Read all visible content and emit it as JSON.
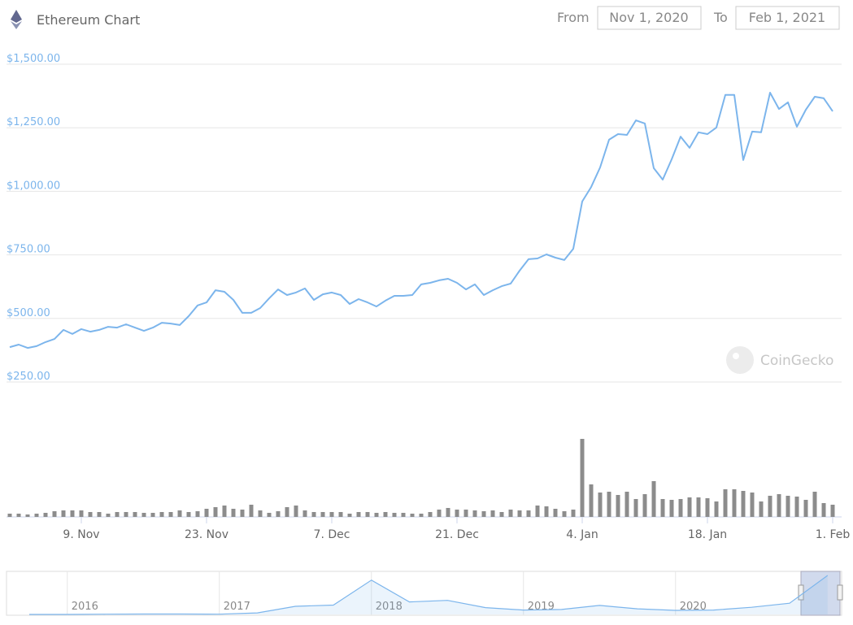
{
  "header": {
    "from_label": "From",
    "from_date": "Nov 1, 2020",
    "to_label": "To",
    "to_date": "Feb 1, 2021"
  },
  "watermark": "CoinGecko",
  "chart_data": [
    {
      "type": "line",
      "title": "Ethereum Chart",
      "color": "#7cb5ec",
      "grid": true,
      "categories": [
        null,
        null,
        null,
        null,
        null,
        null,
        null,
        null,
        "9. Nov",
        null,
        null,
        null,
        null,
        null,
        null,
        null,
        null,
        null,
        null,
        null,
        null,
        null,
        "23. Nov",
        null,
        null,
        null,
        null,
        null,
        null,
        null,
        null,
        null,
        null,
        null,
        null,
        null,
        "7. Dec",
        null,
        null,
        null,
        null,
        null,
        null,
        null,
        null,
        null,
        null,
        null,
        null,
        null,
        "21. Dec",
        null,
        null,
        null,
        null,
        null,
        null,
        null,
        null,
        null,
        null,
        null,
        null,
        null,
        "4. Jan",
        null,
        null,
        null,
        null,
        null,
        null,
        null,
        null,
        null,
        null,
        null,
        null,
        null,
        "18. Jan",
        null,
        null,
        null,
        null,
        null,
        null,
        null,
        null,
        null,
        null,
        null,
        null,
        null,
        "1. Feb"
      ],
      "values": [
        387,
        397,
        384,
        391,
        407,
        419,
        455,
        439,
        458,
        448,
        455,
        467,
        464,
        477,
        464,
        451,
        464,
        483,
        480,
        474,
        509,
        551,
        563,
        611,
        605,
        573,
        522,
        522,
        541,
        579,
        614,
        592,
        602,
        618,
        573,
        595,
        602,
        592,
        557,
        576,
        563,
        547,
        570,
        589,
        589,
        592,
        634,
        640,
        650,
        656,
        640,
        614,
        634,
        592,
        611,
        627,
        637,
        688,
        733,
        736,
        752,
        739,
        730,
        774,
        960,
        1017,
        1094,
        1203,
        1225,
        1222,
        1279,
        1267,
        1091,
        1046,
        1126,
        1215,
        1171,
        1232,
        1225,
        1251,
        1379,
        1379,
        1123,
        1235,
        1232,
        1388,
        1324,
        1350,
        1254,
        1321,
        1372,
        1366,
        1315
      ],
      "ylim": [
        250,
        1500
      ],
      "yticks": [
        {
          "value": 250,
          "label": "$250.00"
        },
        {
          "value": 500,
          "label": "$500.00"
        },
        {
          "value": 750,
          "label": "$750.00"
        },
        {
          "value": 1000,
          "label": "$1,000.00"
        },
        {
          "value": 1250,
          "label": "$1,250.00"
        },
        {
          "value": 1500,
          "label": "$1,500.00"
        }
      ]
    },
    {
      "type": "bar",
      "color": "#8c8c8c",
      "values": [
        4,
        4,
        3,
        4,
        5,
        7,
        8,
        8,
        8,
        6,
        6,
        4,
        6,
        6,
        6,
        5,
        5,
        6,
        6,
        8,
        6,
        7,
        10,
        12,
        14,
        10,
        9,
        15,
        8,
        5,
        7,
        12,
        14,
        8,
        6,
        6,
        6,
        6,
        4,
        6,
        6,
        5,
        6,
        5,
        5,
        4,
        4,
        6,
        9,
        11,
        9,
        9,
        8,
        7,
        8,
        6,
        9,
        8,
        8,
        14,
        13,
        10,
        7,
        9,
        96,
        40,
        30,
        31,
        27,
        31,
        22,
        28,
        44,
        22,
        21,
        22,
        24,
        24,
        23,
        19,
        34,
        34,
        32,
        30,
        19,
        26,
        28,
        26,
        25,
        21,
        31,
        17,
        15
      ]
    },
    {
      "type": "area",
      "color": "#7cb5ec",
      "categories": [
        null,
        "2016",
        null,
        null,
        null,
        "2017",
        null,
        null,
        null,
        "2018",
        null,
        null,
        null,
        "2019",
        null,
        null,
        null,
        "2020",
        null,
        null,
        null,
        null
      ],
      "values": [
        0.6,
        1,
        8,
        12,
        12,
        8,
        50,
        260,
        300,
        1100,
        400,
        450,
        220,
        140,
        160,
        290,
        180,
        130,
        140,
        230,
        360,
        1250
      ]
    }
  ]
}
